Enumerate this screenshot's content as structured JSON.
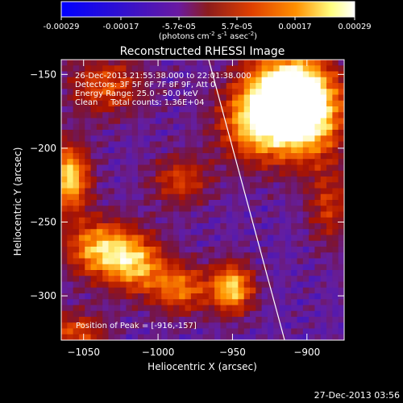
{
  "chart_data": {
    "type": "heatmap",
    "title": "Reconstructed RHESSI Image",
    "xlabel": "Heliocentric X (arcsec)",
    "ylabel": "Heliocentric Y (arcsec)",
    "xlim": [
      -1065,
      -875
    ],
    "ylim": [
      -330,
      -140
    ],
    "xticks": [
      -1050,
      -1000,
      -950,
      -900
    ],
    "yticks": [
      -150,
      -200,
      -250,
      -300
    ],
    "colorbar": {
      "ticks": [
        "-0.00029",
        "-0.00017",
        "-5.7e-05",
        "5.7e-05",
        "0.00017",
        "0.00029"
      ],
      "units_main": "(photons cm",
      "units_exp1": "-2",
      "units_mid": " s",
      "units_exp2": "-1",
      "units_end": " asec",
      "units_exp3": "-2",
      "units_close": ")",
      "colors": [
        "#0000ff",
        "#6010b0",
        "#8c1c1c",
        "#e04000",
        "#ff9000",
        "#ffffc0",
        "#ffffff"
      ]
    },
    "annotations": [
      "26-Dec-2013 21:55:38.000 to 22:01:38.000",
      "Detectors: 3F 5F 6F 7F 8F 9F, Att 0",
      "Energy Range: 25.0 - 50.0 keV",
      "Clean     Total counts: 1.36E+04"
    ],
    "peak_label": "Position of Peak = [-916,-157]",
    "limb_line": [
      [
        -966,
        -140
      ],
      [
        -915,
        -330
      ]
    ],
    "blobs": [
      {
        "x": -915,
        "y": -162,
        "sx": 20,
        "sy": 20,
        "a": 1.0
      },
      {
        "x": -900,
        "y": -178,
        "sx": 18,
        "sy": 22,
        "a": 0.9
      },
      {
        "x": -935,
        "y": -185,
        "sx": 18,
        "sy": 18,
        "a": 0.7
      },
      {
        "x": -1060,
        "y": -220,
        "sx": 10,
        "sy": 16,
        "a": 0.95
      },
      {
        "x": -1040,
        "y": -268,
        "sx": 16,
        "sy": 14,
        "a": 0.8
      },
      {
        "x": -1015,
        "y": -278,
        "sx": 14,
        "sy": 14,
        "a": 0.75
      },
      {
        "x": -985,
        "y": -295,
        "sx": 14,
        "sy": 12,
        "a": 0.65
      },
      {
        "x": -950,
        "y": -295,
        "sx": 10,
        "sy": 12,
        "a": 0.9
      },
      {
        "x": -1035,
        "y": -158,
        "sx": 18,
        "sy": 14,
        "a": 0.55
      },
      {
        "x": -985,
        "y": -222,
        "sx": 14,
        "sy": 12,
        "a": 0.5
      },
      {
        "x": -1055,
        "y": -325,
        "sx": 14,
        "sy": 10,
        "a": 0.55
      },
      {
        "x": -885,
        "y": -240,
        "sx": 10,
        "sy": 18,
        "a": 0.45
      }
    ]
  },
  "timestamp": "27-Dec-2013 03:56"
}
